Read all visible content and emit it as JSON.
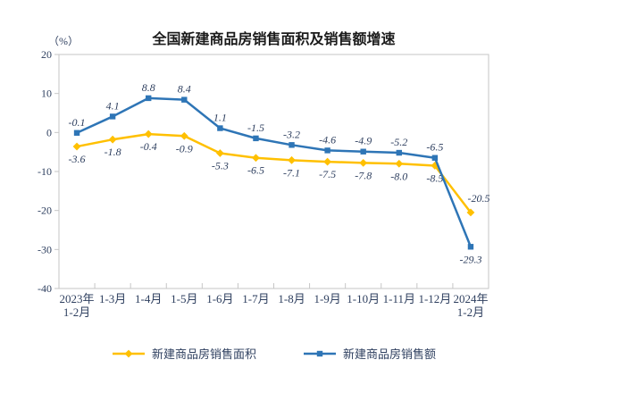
{
  "chart_data": {
    "type": "line",
    "title": "全国新建商品房销售面积及销售额增速",
    "ylabel": "（%）",
    "xlabel": "",
    "ylim": [
      -40,
      20
    ],
    "yticks": [
      20,
      10,
      0,
      -10,
      -20,
      -30,
      -40
    ],
    "grid": false,
    "legend_position": "bottom",
    "categories": [
      [
        "2023年",
        "1-2月"
      ],
      [
        "1-3月"
      ],
      [
        "1-4月"
      ],
      [
        "1-5月"
      ],
      [
        "1-6月"
      ],
      [
        "1-7月"
      ],
      [
        "1-8月"
      ],
      [
        "1-9月"
      ],
      [
        "1-10月"
      ],
      [
        "1-11月"
      ],
      [
        "1-12月"
      ],
      [
        "2024年",
        "1-2月"
      ]
    ],
    "series": [
      {
        "name": "新建商品房销售面积",
        "color": "#FFC000",
        "marker": "diamond",
        "values": [
          -3.6,
          -1.8,
          -0.4,
          -0.9,
          -5.3,
          -6.5,
          -7.1,
          -7.5,
          -7.8,
          -8.0,
          -8.5,
          -20.5
        ],
        "label_placement": [
          "below",
          "below",
          "below",
          "below",
          "below",
          "below",
          "below",
          "below",
          "below",
          "below",
          "below",
          "above-right"
        ]
      },
      {
        "name": "新建商品房销售额",
        "color": "#2E75B6",
        "marker": "square",
        "values": [
          -0.1,
          4.1,
          8.8,
          8.4,
          1.1,
          -1.5,
          -3.2,
          -4.6,
          -4.9,
          -5.2,
          -6.5,
          -29.3
        ],
        "label_placement": [
          "above",
          "above",
          "above",
          "above",
          "above",
          "above",
          "above",
          "above",
          "above",
          "above",
          "above",
          "below"
        ]
      }
    ]
  },
  "colors": {
    "axis": "#c6c6c6",
    "text": "#2e3f5f",
    "title": "#1a1a1a",
    "background": "#ffffff"
  }
}
